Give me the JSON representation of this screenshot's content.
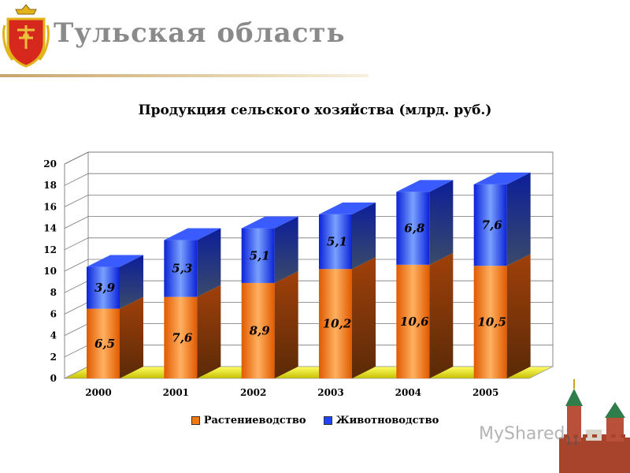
{
  "slide": {
    "title": "Тульская  область",
    "page_number": "11",
    "watermark": "MyShared"
  },
  "colors": {
    "plant": "#f07a10",
    "livestock": "#1f44ff",
    "title_gray": "#8a8a8a"
  },
  "chart_data": {
    "type": "bar",
    "stacked": true,
    "title": "Продукция сельского хозяйства (млрд. руб.)",
    "categories": [
      "2000",
      "2001",
      "2002",
      "2003",
      "2004",
      "2005"
    ],
    "series": [
      {
        "name": "Растениеводство",
        "values": [
          6.5,
          7.6,
          8.9,
          10.2,
          10.6,
          10.5
        ],
        "labels": [
          "6,5",
          "7,6",
          "8,9",
          "10,2",
          "10,6",
          "10,5"
        ]
      },
      {
        "name": "Животноводство",
        "values": [
          3.9,
          5.3,
          5.1,
          5.1,
          6.8,
          7.6
        ],
        "labels": [
          "3,9",
          "5,3",
          "5,1",
          "5,1",
          "6,8",
          "7,6"
        ]
      }
    ],
    "ylim": [
      0,
      20
    ],
    "yticks": [
      "0",
      "2",
      "4",
      "6",
      "8",
      "10",
      "12",
      "14",
      "16",
      "18",
      "20"
    ],
    "xlabel": "",
    "ylabel": "",
    "grid": true,
    "legend_position": "bottom"
  }
}
